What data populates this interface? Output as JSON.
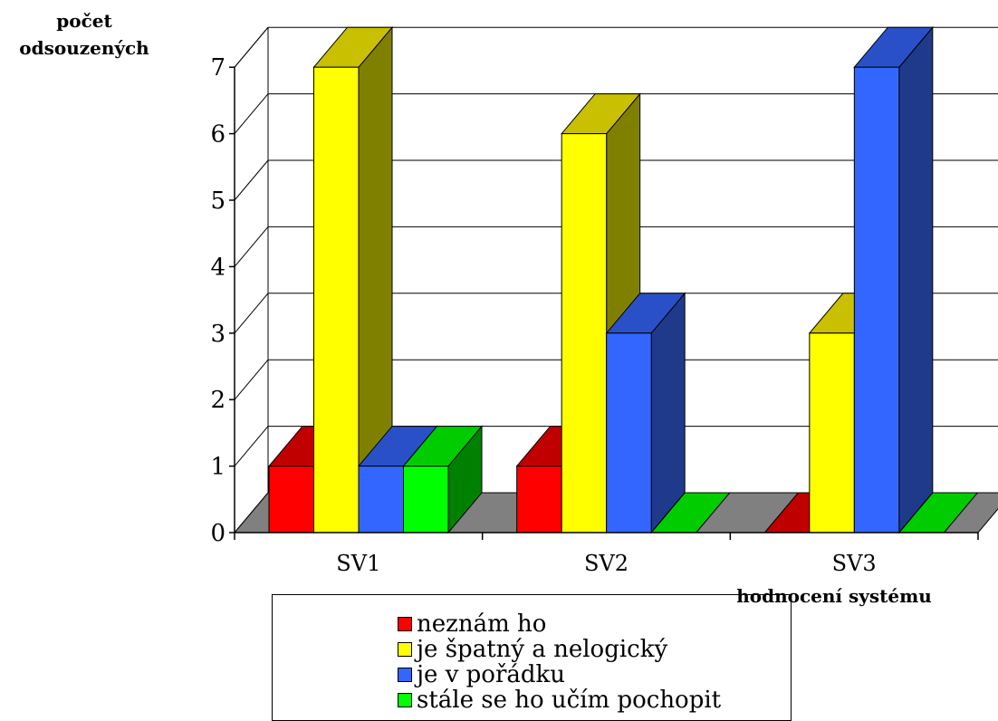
{
  "chart_data": {
    "type": "bar",
    "categories": [
      "SV1",
      "SV2",
      "SV3"
    ],
    "series": [
      {
        "name": "neznám ho",
        "values": [
          1,
          1,
          0
        ],
        "color": "#ff0000",
        "top_color": "#c00000",
        "side_color": "#800000"
      },
      {
        "name": "je špatný a nelogický",
        "values": [
          7,
          6,
          3
        ],
        "color": "#ffff00",
        "top_color": "#c8c000",
        "side_color": "#808000"
      },
      {
        "name": "je v pořádku",
        "values": [
          1,
          3,
          7
        ],
        "color": "#3366ff",
        "top_color": "#2a50c8",
        "side_color": "#1f3a8a"
      },
      {
        "name": "stále se ho učím pochopit",
        "values": [
          1,
          0,
          0
        ],
        "color": "#00ff00",
        "top_color": "#00cc00",
        "side_color": "#008000"
      }
    ],
    "ylabel": "počet odsouzených",
    "xlabel": "hodnocení systému",
    "ylim": [
      0,
      7
    ],
    "yticks": [
      "0",
      "1",
      "2",
      "3",
      "4",
      "5",
      "6",
      "7"
    ],
    "grid": true,
    "legend": "bottom",
    "floor_color": "#808080"
  }
}
